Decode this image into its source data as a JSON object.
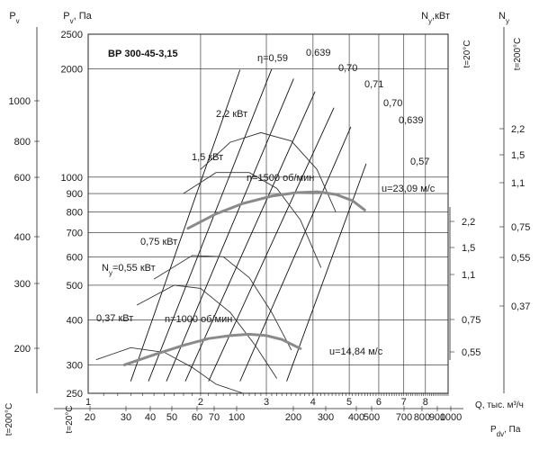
{
  "chart_data": {
    "type": "line",
    "title": "ВР 300-45-3,15",
    "x_axis": {
      "label": "Q, тыс. м³/ч",
      "scale": "log",
      "range": [
        1,
        9.2
      ],
      "ticks": [
        1,
        2,
        3,
        4,
        5,
        6,
        7,
        8
      ]
    },
    "x_axis_pdv": {
      "label": "P<sub>dv</sub>, Па",
      "ticks": [
        20,
        30,
        40,
        50,
        60,
        70,
        100,
        200,
        300,
        400,
        500,
        700,
        800,
        900,
        1000
      ]
    },
    "x_axis_temp_label": "t=20°C",
    "y_axis": {
      "label": "P<sub>v</sub>, Па",
      "scale": "log",
      "range": [
        250,
        2500
      ],
      "ticks": [
        250,
        300,
        400,
        500,
        600,
        700,
        800,
        900,
        1000,
        2000,
        2500
      ]
    },
    "y_axis_200": {
      "label": "P<sub>v</sub>",
      "temp_label": "t=200°C",
      "ticks": [
        200,
        300,
        400,
        600,
        800,
        1000
      ]
    },
    "power_axis_20": {
      "label": "N<sub>y</sub>,кВт",
      "temp_label": "t=20°C",
      "ticks": [
        0.37,
        0.55,
        0.75,
        1.1,
        1.5,
        2.2
      ]
    },
    "power_axis_200": {
      "label": "N<sub>y</sub>",
      "temp_label": "t=200°C",
      "ticks": [
        "0,37",
        "0,55",
        "0,75",
        "1,1",
        "1,5",
        "2,2"
      ],
      "tick_values": [
        0.37,
        0.55,
        0.75,
        1.1,
        1.5,
        2.2
      ]
    },
    "power_ticks_20_text": [
      "0,55",
      "0,75",
      "1,1",
      "1,5",
      "2,2"
    ],
    "power_ticks_20_values": [
      0.55,
      0.75,
      1.1,
      1.5,
      2.2
    ],
    "series": [
      {
        "name": "n=1500 об/мин",
        "x": [
          1.85,
          2.2,
          2.6,
          3.1,
          3.6,
          4.1,
          4.6,
          5.1,
          5.5
        ],
        "y": [
          720,
          790,
          845,
          885,
          905,
          910,
          895,
          860,
          810
        ]
      },
      {
        "name": "n=1000 об/мин",
        "x": [
          1.25,
          1.5,
          1.8,
          2.1,
          2.4,
          2.7,
          3.0,
          3.3,
          3.7
        ],
        "y": [
          300,
          320,
          340,
          355,
          362,
          365,
          362,
          353,
          333
        ]
      }
    ],
    "power_curves": [
      {
        "label": "2,2 кВт",
        "x": [
          2.0,
          2.4,
          2.9,
          3.5,
          4.1,
          4.6
        ],
        "y": [
          1050,
          1250,
          1330,
          1260,
          1050,
          800
        ]
      },
      {
        "label": "1,5 кВт",
        "x": [
          1.8,
          2.2,
          2.7,
          3.2,
          3.7,
          4.2
        ],
        "y": [
          900,
          1030,
          1030,
          930,
          760,
          560
        ]
      },
      {
        "label": "0,75 кВт",
        "x": [
          1.5,
          1.9,
          2.3,
          2.7,
          3.1,
          3.5
        ],
        "y": [
          520,
          605,
          600,
          525,
          420,
          330
        ]
      },
      {
        "label": "N<sub>y</sub>=0,55 кВт",
        "x": [
          1.35,
          1.7,
          2.0,
          2.4,
          2.8,
          3.2
        ],
        "y": [
          440,
          500,
          490,
          420,
          340,
          275
        ]
      },
      {
        "label": "0,37 кВт",
        "x": [
          1.05,
          1.3,
          1.6,
          1.9,
          2.2,
          2.6
        ],
        "y": [
          310,
          335,
          325,
          295,
          265,
          250
        ]
      }
    ],
    "efficiency_lines": [
      {
        "label": "η=0,59",
        "x": [
          1.3,
          2.55
        ],
        "y": [
          270,
          1990
        ]
      },
      {
        "label": "0,639",
        "x": [
          1.45,
          3.1
        ],
        "y": [
          270,
          2000
        ]
      },
      {
        "label": "0,70",
        "x": [
          1.62,
          3.55
        ],
        "y": [
          270,
          1880
        ]
      },
      {
        "label": "0,71",
        "x": [
          1.82,
          4.05
        ],
        "y": [
          270,
          1730
        ]
      },
      {
        "label": "0,70",
        "x": [
          2.1,
          4.55
        ],
        "y": [
          270,
          1560
        ]
      },
      {
        "label": "0,639",
        "x": [
          2.55,
          5.05
        ],
        "y": [
          270,
          1380
        ]
      },
      {
        "label": "0,57",
        "x": [
          3.4,
          5.55
        ],
        "y": [
          270,
          1090
        ]
      }
    ],
    "velocity_labels": [
      "u=23,09 м/с",
      "u=14,84 м/с"
    ],
    "grid": true
  }
}
